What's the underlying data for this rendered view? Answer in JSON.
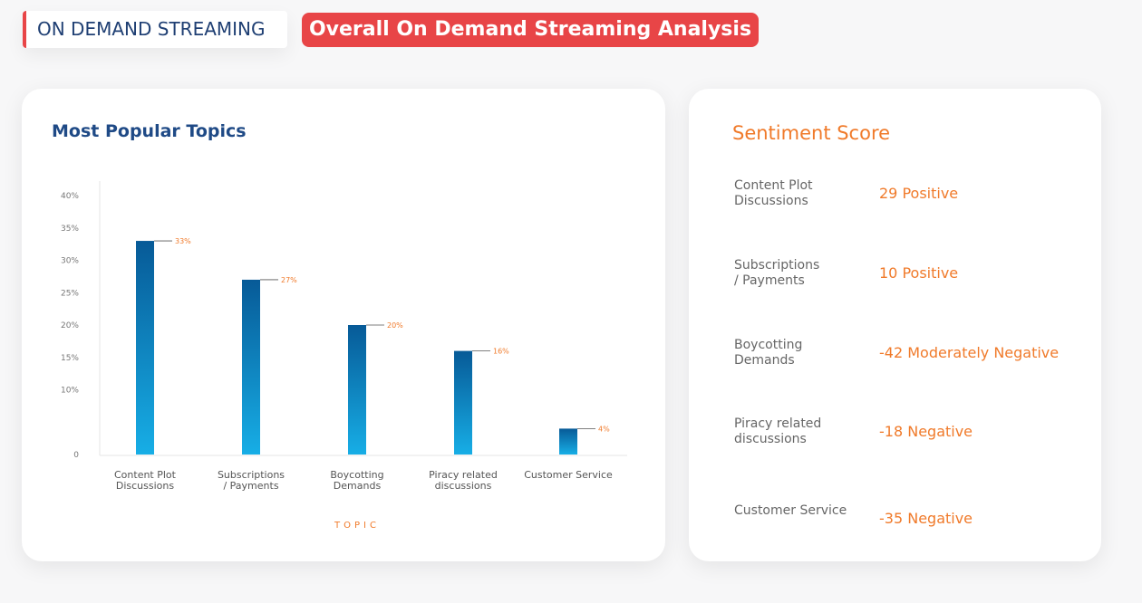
{
  "header": {
    "section": "ON DEMAND STREAMING",
    "title": "Overall On Demand Streaming Analysis"
  },
  "chart_data": {
    "type": "bar",
    "title": "Most Popular Topics",
    "x_label": "TOPIC",
    "categories": [
      "Content Plot\nDiscussions",
      "Subscriptions\n/ Payments",
      "Boycotting\nDemands",
      "Piracy related\ndiscussions",
      "Customer Service"
    ],
    "values": [
      33,
      27,
      20,
      16,
      4
    ],
    "value_labels": [
      "33%",
      "27%",
      "20%",
      "16%",
      "4%"
    ],
    "gradient": [
      "#075a97",
      "#17aee6"
    ],
    "ylim": [
      0,
      40
    ],
    "yticks": [
      0,
      {
        "value": 10,
        "label": "10%"
      },
      {
        "value": 15,
        "label": "15%"
      },
      {
        "value": 20,
        "label": "20%"
      },
      {
        "value": 25,
        "label": "25%"
      },
      {
        "value": 30,
        "label": "30%"
      },
      {
        "value": 35,
        "label": "35%"
      },
      {
        "value": 40,
        "label": "40%"
      }
    ]
  },
  "sentiment": {
    "title": "Sentiment Score",
    "rows": [
      {
        "topic": "Content Plot\nDiscussions",
        "score": "29 Positive"
      },
      {
        "topic": "Subscriptions\n/ Payments",
        "score": "10 Positive"
      },
      {
        "topic": "Boycotting\nDemands",
        "score": "-42 Moderately Negative"
      },
      {
        "topic": "Piracy related\ndiscussions",
        "score": "-18 Negative"
      },
      {
        "topic": "Customer Service",
        "score": "-35 Negative"
      }
    ]
  }
}
